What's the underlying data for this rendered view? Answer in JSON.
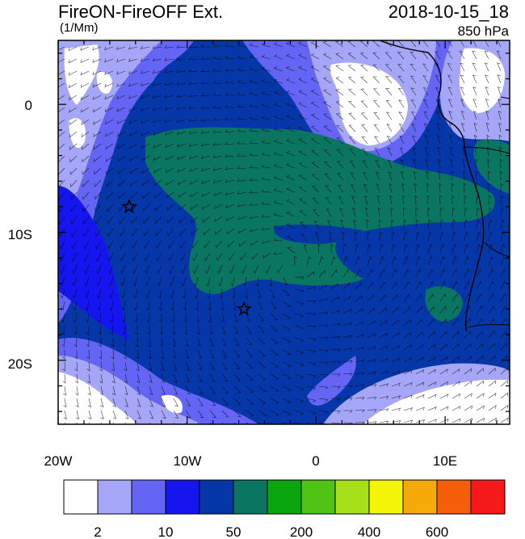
{
  "header": {
    "title": "FireON-FireOFF Ext.",
    "units": "(1/Mm)",
    "datetime": "2018-10-15_18",
    "level": "850 hPa"
  },
  "map": {
    "lon_labels": [
      "20W",
      "10W",
      "0",
      "10E"
    ],
    "lat_labels": [
      "0",
      "10S",
      "20S"
    ],
    "markers": [
      {
        "name": "star-marker-1",
        "lon": -14.5,
        "lat": -8.0
      },
      {
        "name": "star-marker-2",
        "lon": -5.6,
        "lat": -16.0
      }
    ]
  },
  "colorbar": {
    "colors": [
      "#ffffff",
      "#a6a6f8",
      "#6565f5",
      "#1515f0",
      "#0637a8",
      "#0a7560",
      "#0aa60e",
      "#50c414",
      "#a6e019",
      "#f5f50a",
      "#f5aa0a",
      "#f55f0a",
      "#f51919"
    ],
    "labels": [
      "2",
      "10",
      "50",
      "200",
      "400",
      "600"
    ]
  }
}
